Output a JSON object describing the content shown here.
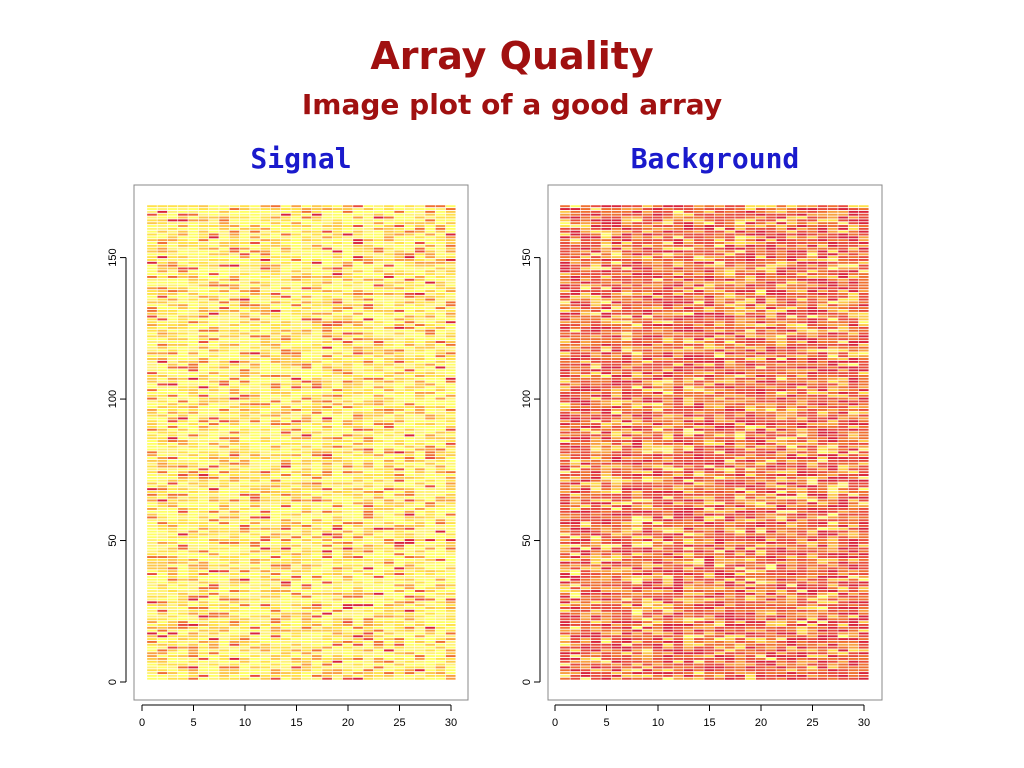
{
  "title": "Array Quality",
  "subtitle": "Image plot of a good array",
  "chart_data": [
    {
      "type": "heatmap",
      "title": "Signal",
      "x_range": [
        0,
        30
      ],
      "y_range": [
        0,
        170
      ],
      "x_ticks": [
        "0",
        "5",
        "10",
        "15",
        "20",
        "25",
        "30"
      ],
      "y_ticks": [
        "0",
        "50",
        "100",
        "150"
      ],
      "grid": false,
      "n_cols": 30,
      "n_rows": 168,
      "palette": [
        "#ffff66",
        "#fff176",
        "#ffe04a",
        "#fcc84a",
        "#f8a040",
        "#ef7030",
        "#e84c3a",
        "#d8243a"
      ],
      "value_weights": [
        0.34,
        0.18,
        0.16,
        0.12,
        0.09,
        0.06,
        0.03,
        0.02
      ]
    },
    {
      "type": "heatmap",
      "title": "Background",
      "x_range": [
        0,
        30
      ],
      "y_range": [
        0,
        170
      ],
      "x_ticks": [
        "0",
        "5",
        "10",
        "15",
        "20",
        "25",
        "30"
      ],
      "y_ticks": [
        "0",
        "50",
        "100",
        "150"
      ],
      "grid": false,
      "n_cols": 30,
      "n_rows": 168,
      "palette": [
        "#ffff66",
        "#fff176",
        "#ffe04a",
        "#fcc84a",
        "#f8a040",
        "#ef7030",
        "#e84c3a",
        "#d8243a"
      ],
      "value_weights": [
        0.02,
        0.03,
        0.05,
        0.08,
        0.14,
        0.22,
        0.28,
        0.18
      ]
    }
  ]
}
